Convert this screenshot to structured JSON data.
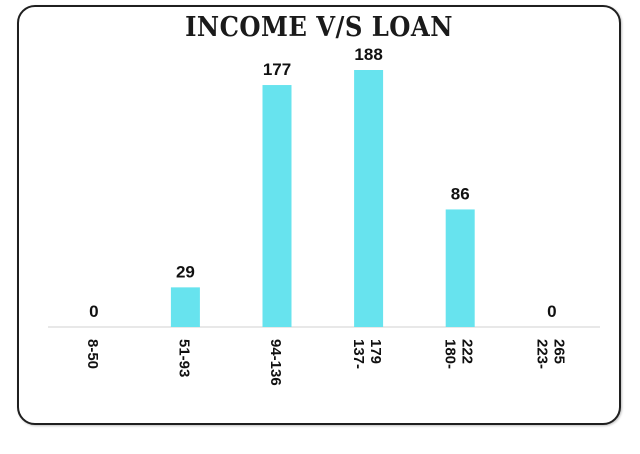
{
  "chart_data": {
    "type": "bar",
    "title": "INCOME V/S LOAN",
    "xlabel": "",
    "ylabel": "",
    "categories": [
      "8-50",
      "51-93",
      "94-136",
      "137-179",
      "180-222",
      "223-265"
    ],
    "tick_lines": [
      [
        "8-50"
      ],
      [
        "51-93"
      ],
      [
        "94-136"
      ],
      [
        "137-",
        "179"
      ],
      [
        "180-",
        "222"
      ],
      [
        "223-",
        "265"
      ]
    ],
    "values": [
      0,
      29,
      177,
      188,
      86,
      0
    ],
    "ylim": [
      0,
      200
    ],
    "grid": false,
    "legend": "none",
    "bar_color": "#67e3ee",
    "data_labels": true
  }
}
